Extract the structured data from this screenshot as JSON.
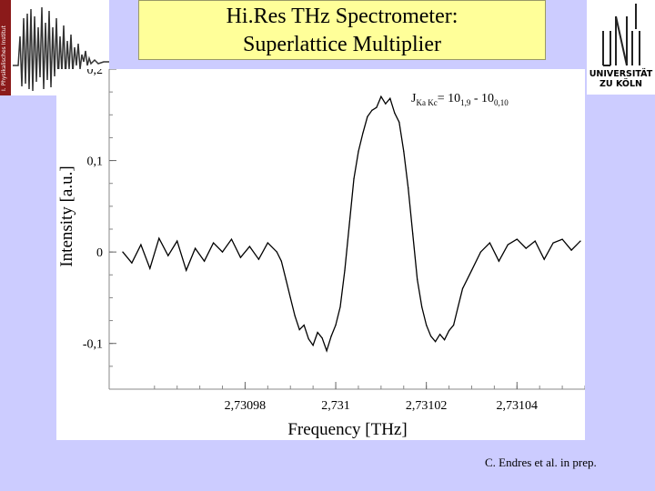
{
  "slide": {
    "title_line1": "Hi.Res THz Spectrometer:",
    "title_line2": "Superlattice Multiplier",
    "citation": "C. Endres et al.  in prep.",
    "background_color": "#ccccff",
    "title_bg_color": "#ffff99"
  },
  "logos": {
    "left_strip_text": "I. Physikalisches Institut",
    "university_name_line1": "UNIVERSITÄT",
    "university_name_line2": "ZU KÖLN",
    "left_icon": "spectrum-logo-icon",
    "right_icon": "university-logo-icon"
  },
  "chart_data": {
    "type": "line",
    "title": "",
    "xlabel": "Frequency [THz]",
    "ylabel": "Intensity [a.u.]",
    "annotation": "J Ka Kc = 10 1,9 - 10 0,10",
    "annotation_parts": {
      "j": "J",
      "sub": "Ka Kc",
      "lhs": "= 10",
      "lhs_sub": "1,9",
      "mid": " - 10",
      "rhs_sub": "0,10"
    },
    "xlim": [
      2.73095,
      2.731055
    ],
    "ylim": [
      -0.15,
      0.2
    ],
    "x_ticks": [
      2.73098,
      2.731,
      2.73102,
      2.73104
    ],
    "x_tick_labels": [
      "2,73098",
      "2,731",
      "2,73102",
      "2,73104"
    ],
    "y_ticks": [
      0.2,
      0.1,
      0.0,
      -0.1
    ],
    "y_tick_labels": [
      "0,2",
      "0,1",
      "0",
      "-0,1"
    ],
    "grid": false,
    "line_color": "#000000",
    "series": [
      {
        "x": [
          2.730953,
          2.730955,
          2.730957,
          2.730959,
          2.730961,
          2.730963,
          2.730965,
          2.730967,
          2.730969,
          2.730971,
          2.730973,
          2.730975,
          2.730977,
          2.730979,
          2.730981,
          2.730983,
          2.730985,
          2.730987,
          2.730988,
          2.730989,
          2.73099,
          2.730991,
          2.730992,
          2.730993,
          2.730994,
          2.730995,
          2.730996,
          2.730997,
          2.730998,
          2.730999,
          2.731,
          2.731001,
          2.731002,
          2.731003,
          2.731004,
          2.731005,
          2.731006,
          2.731007,
          2.731008,
          2.731009,
          2.73101,
          2.731011,
          2.731012,
          2.731013,
          2.731014,
          2.731015,
          2.731016,
          2.731017,
          2.731018,
          2.731019,
          2.73102,
          2.731021,
          2.731022,
          2.731023,
          2.731024,
          2.731025,
          2.731026,
          2.731027,
          2.731028,
          2.73103,
          2.731032,
          2.731034,
          2.731036,
          2.731038,
          2.73104,
          2.731042,
          2.731044,
          2.731046,
          2.731048,
          2.73105,
          2.731052,
          2.731054
        ],
        "y": [
          0.0,
          -0.012,
          0.008,
          -0.018,
          0.015,
          -0.004,
          0.012,
          -0.02,
          0.004,
          -0.01,
          0.01,
          0.0,
          0.014,
          -0.006,
          0.006,
          -0.008,
          0.01,
          0.0,
          -0.01,
          -0.03,
          -0.05,
          -0.07,
          -0.085,
          -0.08,
          -0.095,
          -0.102,
          -0.088,
          -0.094,
          -0.108,
          -0.092,
          -0.08,
          -0.06,
          -0.02,
          0.03,
          0.08,
          0.11,
          0.13,
          0.148,
          0.155,
          0.158,
          0.17,
          0.162,
          0.168,
          0.152,
          0.142,
          0.11,
          0.07,
          0.02,
          -0.03,
          -0.06,
          -0.08,
          -0.092,
          -0.098,
          -0.09,
          -0.096,
          -0.086,
          -0.08,
          -0.06,
          -0.04,
          -0.02,
          0.0,
          0.01,
          -0.01,
          0.008,
          0.014,
          0.004,
          0.012,
          -0.008,
          0.01,
          0.014,
          0.002,
          0.012
        ]
      }
    ]
  }
}
